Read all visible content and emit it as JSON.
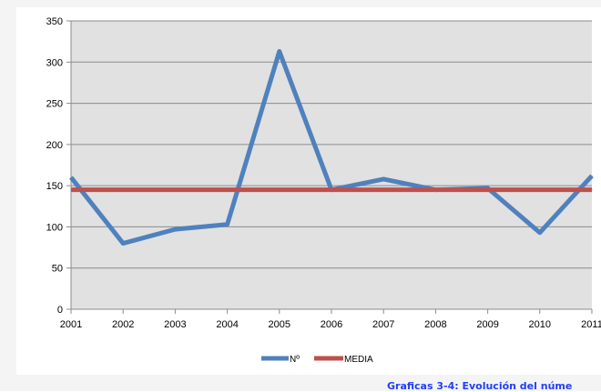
{
  "chart_data": {
    "type": "line",
    "title": "",
    "xlabel": "",
    "ylabel": "",
    "x": [
      "2001",
      "2002",
      "2003",
      "2004",
      "2005",
      "2006",
      "2007",
      "2008",
      "2009",
      "2010",
      "2011"
    ],
    "ylim": [
      0,
      350
    ],
    "yticks": [
      "0",
      "50",
      "100",
      "150",
      "200",
      "250",
      "300",
      "350"
    ],
    "grid": "horizontal",
    "legend_position": "bottom",
    "series": [
      {
        "name": "Nº",
        "color": "#4f81bd",
        "values": [
          160,
          80,
          97,
          103,
          313,
          145,
          158,
          145,
          147,
          93,
          162
        ]
      },
      {
        "name": "MEDIA",
        "color": "#c0504d",
        "values": [
          145,
          145,
          145,
          145,
          145,
          145,
          145,
          145,
          145,
          145,
          145
        ]
      }
    ]
  },
  "caption": "Graficas 3-4: Evolución del núme"
}
